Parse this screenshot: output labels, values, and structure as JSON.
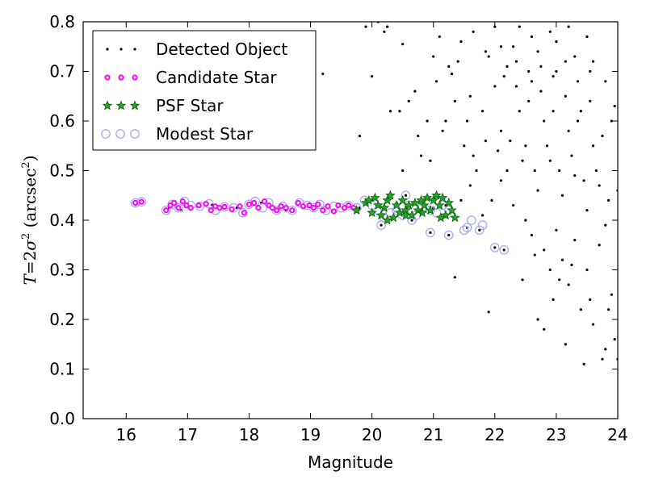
{
  "chart_data": {
    "type": "scatter",
    "xlabel": "Magnitude",
    "ylabel": {
      "math": "T = 2σ²",
      "unit": "arcsec",
      "power": "2",
      "full": "T = 2σ² (arcsec²)"
    },
    "xlim": [
      15.3,
      24
    ],
    "ylim": [
      0,
      0.8
    ],
    "x_ticks": [
      "16",
      "17",
      "18",
      "19",
      "20",
      "21",
      "22",
      "23",
      "24"
    ],
    "y_ticks": [
      "0.0",
      "0.1",
      "0.2",
      "0.3",
      "0.4",
      "0.5",
      "0.6",
      "0.7",
      "0.8"
    ],
    "grid": false,
    "legend_position": "top-left",
    "legend": [
      "Detected Object",
      "Candidate Star",
      "PSF Star",
      "Modest Star"
    ],
    "colors": {
      "detected": "#000000",
      "candidate": "#ff00ff",
      "psf_fill": "#2ca02c",
      "psf_edge": "#006400",
      "modest": "#a9a9f5"
    },
    "series": [
      {
        "name": "Detected Object",
        "marker": "dot",
        "points": [
          [
            16.15,
            0.435
          ],
          [
            16.25,
            0.437
          ],
          [
            16.7,
            0.425
          ],
          [
            16.8,
            0.43
          ],
          [
            16.9,
            0.42
          ],
          [
            17.0,
            0.433
          ],
          [
            17.2,
            0.428
          ],
          [
            17.4,
            0.431
          ],
          [
            17.6,
            0.427
          ],
          [
            17.8,
            0.425
          ],
          [
            18.0,
            0.432
          ],
          [
            18.2,
            0.435
          ],
          [
            18.4,
            0.425
          ],
          [
            18.6,
            0.42
          ],
          [
            18.8,
            0.432
          ],
          [
            19.0,
            0.428
          ],
          [
            19.2,
            0.425
          ],
          [
            19.4,
            0.42
          ],
          [
            19.6,
            0.43
          ],
          [
            19.8,
            0.425
          ],
          [
            20.0,
            0.44
          ],
          [
            20.2,
            0.425
          ],
          [
            20.4,
            0.435
          ],
          [
            20.6,
            0.43
          ],
          [
            20.8,
            0.42
          ],
          [
            21.0,
            0.425
          ],
          [
            21.2,
            0.43
          ],
          [
            20.55,
            0.45
          ],
          [
            20.15,
            0.39
          ],
          [
            20.65,
            0.4
          ],
          [
            20.95,
            0.375
          ],
          [
            21.25,
            0.37
          ],
          [
            21.55,
            0.385
          ],
          [
            21.75,
            0.38
          ],
          [
            22.0,
            0.345
          ],
          [
            22.15,
            0.34
          ],
          [
            21.35,
            0.285
          ],
          [
            19.2,
            0.695
          ],
          [
            19.8,
            0.57
          ],
          [
            20.0,
            0.69
          ],
          [
            20.2,
            0.78
          ],
          [
            20.3,
            0.62
          ],
          [
            20.5,
            0.755
          ],
          [
            20.5,
            0.5
          ],
          [
            20.6,
            0.64
          ],
          [
            20.7,
            0.66
          ],
          [
            20.8,
            0.53
          ],
          [
            20.9,
            0.6
          ],
          [
            21.0,
            0.73
          ],
          [
            21.1,
            0.77
          ],
          [
            21.2,
            0.6
          ],
          [
            21.3,
            0.695
          ],
          [
            21.4,
            0.72
          ],
          [
            21.5,
            0.55
          ],
          [
            21.6,
            0.65
          ],
          [
            21.7,
            0.5
          ],
          [
            21.8,
            0.62
          ],
          [
            21.9,
            0.73
          ],
          [
            22.0,
            0.67
          ],
          [
            22.1,
            0.58
          ],
          [
            22.2,
            0.5
          ],
          [
            22.3,
            0.75
          ],
          [
            22.4,
            0.62
          ],
          [
            22.5,
            0.55
          ],
          [
            22.6,
            0.68
          ],
          [
            22.7,
            0.46
          ],
          [
            22.8,
            0.6
          ],
          [
            22.9,
            0.52
          ],
          [
            23.0,
            0.7
          ],
          [
            23.1,
            0.45
          ],
          [
            23.2,
            0.58
          ],
          [
            23.3,
            0.49
          ],
          [
            23.4,
            0.62
          ],
          [
            23.5,
            0.42
          ],
          [
            23.6,
            0.55
          ],
          [
            23.7,
            0.47
          ],
          [
            23.8,
            0.39
          ],
          [
            23.9,
            0.6
          ],
          [
            24.0,
            0.46
          ],
          [
            21.45,
            0.44
          ],
          [
            21.6,
            0.47
          ],
          [
            21.8,
            0.41
          ],
          [
            21.95,
            0.44
          ],
          [
            22.1,
            0.48
          ],
          [
            22.3,
            0.43
          ],
          [
            22.5,
            0.4
          ],
          [
            22.6,
            0.37
          ],
          [
            22.8,
            0.34
          ],
          [
            22.9,
            0.3
          ],
          [
            23.0,
            0.38
          ],
          [
            23.1,
            0.32
          ],
          [
            23.2,
            0.27
          ],
          [
            23.3,
            0.36
          ],
          [
            23.4,
            0.22
          ],
          [
            23.5,
            0.3
          ],
          [
            23.6,
            0.19
          ],
          [
            23.7,
            0.35
          ],
          [
            23.8,
            0.14
          ],
          [
            23.9,
            0.25
          ],
          [
            24.0,
            0.12
          ],
          [
            23.85,
            0.22
          ],
          [
            22.8,
            0.18
          ],
          [
            22.95,
            0.24
          ],
          [
            23.15,
            0.15
          ],
          [
            23.45,
            0.11
          ],
          [
            23.75,
            0.12
          ],
          [
            21.9,
            0.215
          ],
          [
            22.45,
            0.28
          ],
          [
            22.7,
            0.2
          ],
          [
            23.95,
            0.16
          ],
          [
            23.55,
            0.24
          ],
          [
            23.25,
            0.31
          ],
          [
            23.05,
            0.28
          ],
          [
            22.65,
            0.33
          ],
          [
            22.0,
            0.79
          ],
          [
            22.1,
            0.75
          ],
          [
            22.2,
            0.71
          ],
          [
            22.4,
            0.79
          ],
          [
            22.6,
            0.77
          ],
          [
            22.7,
            0.74
          ],
          [
            22.9,
            0.78
          ],
          [
            23.0,
            0.76
          ],
          [
            23.2,
            0.79
          ],
          [
            23.3,
            0.73
          ],
          [
            23.5,
            0.77
          ],
          [
            23.6,
            0.72
          ],
          [
            23.8,
            0.68
          ],
          [
            23.95,
            0.63
          ],
          [
            22.35,
            0.67
          ],
          [
            22.55,
            0.64
          ],
          [
            22.75,
            0.66
          ],
          [
            22.95,
            0.62
          ],
          [
            23.15,
            0.65
          ],
          [
            23.35,
            0.6
          ],
          [
            23.55,
            0.64
          ],
          [
            23.75,
            0.57
          ],
          [
            22.25,
            0.56
          ],
          [
            22.45,
            0.52
          ],
          [
            22.65,
            0.5
          ],
          [
            22.85,
            0.55
          ],
          [
            23.05,
            0.5
          ],
          [
            23.25,
            0.53
          ],
          [
            23.45,
            0.48
          ],
          [
            23.65,
            0.5
          ],
          [
            23.85,
            0.44
          ],
          [
            22.05,
            0.54
          ],
          [
            21.85,
            0.56
          ],
          [
            21.65,
            0.53
          ],
          [
            21.55,
            0.6
          ],
          [
            21.35,
            0.64
          ],
          [
            21.15,
            0.58
          ],
          [
            20.95,
            0.52
          ],
          [
            20.75,
            0.57
          ],
          [
            20.45,
            0.62
          ],
          [
            20.25,
            0.79
          ],
          [
            19.9,
            0.79
          ],
          [
            20.1,
            0.8
          ],
          [
            21.05,
            0.68
          ],
          [
            21.25,
            0.71
          ],
          [
            21.45,
            0.76
          ],
          [
            21.65,
            0.78
          ],
          [
            21.85,
            0.74
          ],
          [
            22.15,
            0.69
          ],
          [
            22.35,
            0.72
          ],
          [
            22.55,
            0.7
          ],
          [
            22.75,
            0.71
          ],
          [
            22.95,
            0.69
          ],
          [
            23.15,
            0.72
          ],
          [
            23.35,
            0.68
          ],
          [
            23.55,
            0.7
          ]
        ]
      },
      {
        "name": "Candidate Star",
        "marker": "small-circle",
        "points": [
          [
            16.15,
            0.435
          ],
          [
            16.25,
            0.437
          ],
          [
            16.65,
            0.42
          ],
          [
            16.72,
            0.43
          ],
          [
            16.78,
            0.435
          ],
          [
            16.85,
            0.425
          ],
          [
            16.92,
            0.438
          ],
          [
            16.98,
            0.43
          ],
          [
            17.05,
            0.425
          ],
          [
            17.18,
            0.43
          ],
          [
            17.3,
            0.433
          ],
          [
            17.38,
            0.42
          ],
          [
            17.45,
            0.428
          ],
          [
            17.52,
            0.425
          ],
          [
            17.6,
            0.427
          ],
          [
            17.72,
            0.422
          ],
          [
            17.85,
            0.428
          ],
          [
            17.92,
            0.415
          ],
          [
            18.0,
            0.432
          ],
          [
            18.08,
            0.435
          ],
          [
            18.15,
            0.425
          ],
          [
            18.25,
            0.438
          ],
          [
            18.32,
            0.43
          ],
          [
            18.38,
            0.425
          ],
          [
            18.45,
            0.42
          ],
          [
            18.52,
            0.428
          ],
          [
            18.6,
            0.425
          ],
          [
            18.7,
            0.42
          ],
          [
            18.8,
            0.435
          ],
          [
            18.88,
            0.428
          ],
          [
            18.98,
            0.43
          ],
          [
            19.05,
            0.425
          ],
          [
            19.12,
            0.432
          ],
          [
            19.2,
            0.42
          ],
          [
            19.28,
            0.428
          ],
          [
            19.38,
            0.418
          ],
          [
            19.45,
            0.43
          ],
          [
            19.55,
            0.425
          ],
          [
            19.62,
            0.43
          ],
          [
            19.7,
            0.425
          ]
        ]
      },
      {
        "name": "PSF Star",
        "marker": "star",
        "points": [
          [
            19.75,
            0.42
          ],
          [
            19.9,
            0.435
          ],
          [
            19.95,
            0.44
          ],
          [
            20.0,
            0.415
          ],
          [
            20.05,
            0.445
          ],
          [
            20.1,
            0.43
          ],
          [
            20.15,
            0.41
          ],
          [
            20.2,
            0.425
          ],
          [
            20.25,
            0.44
          ],
          [
            20.3,
            0.45
          ],
          [
            20.35,
            0.405
          ],
          [
            20.4,
            0.43
          ],
          [
            20.45,
            0.415
          ],
          [
            20.5,
            0.44
          ],
          [
            20.55,
            0.42
          ],
          [
            20.6,
            0.43
          ],
          [
            20.65,
            0.41
          ],
          [
            20.7,
            0.435
          ],
          [
            20.75,
            0.42
          ],
          [
            20.8,
            0.44
          ],
          [
            20.85,
            0.43
          ],
          [
            20.9,
            0.445
          ],
          [
            20.95,
            0.42
          ],
          [
            21.0,
            0.44
          ],
          [
            21.05,
            0.45
          ],
          [
            21.1,
            0.43
          ],
          [
            21.15,
            0.445
          ],
          [
            21.2,
            0.41
          ],
          [
            21.25,
            0.435
          ],
          [
            21.3,
            0.42
          ],
          [
            21.35,
            0.405
          ],
          [
            20.25,
            0.4
          ],
          [
            20.55,
            0.41
          ],
          [
            20.82,
            0.415
          ],
          [
            21.12,
            0.405
          ]
        ]
      },
      {
        "name": "Modest Star",
        "marker": "open-circle",
        "points": [
          [
            16.15,
            0.435
          ],
          [
            16.25,
            0.437
          ],
          [
            16.65,
            0.42
          ],
          [
            16.75,
            0.432
          ],
          [
            16.85,
            0.425
          ],
          [
            16.95,
            0.438
          ],
          [
            17.05,
            0.43
          ],
          [
            17.2,
            0.428
          ],
          [
            17.35,
            0.433
          ],
          [
            17.45,
            0.42
          ],
          [
            17.6,
            0.427
          ],
          [
            17.75,
            0.425
          ],
          [
            17.9,
            0.415
          ],
          [
            18.0,
            0.432
          ],
          [
            18.1,
            0.438
          ],
          [
            18.22,
            0.425
          ],
          [
            18.32,
            0.435
          ],
          [
            18.45,
            0.42
          ],
          [
            18.55,
            0.428
          ],
          [
            18.7,
            0.42
          ],
          [
            18.82,
            0.435
          ],
          [
            18.95,
            0.43
          ],
          [
            19.05,
            0.425
          ],
          [
            19.15,
            0.432
          ],
          [
            19.25,
            0.42
          ],
          [
            19.38,
            0.428
          ],
          [
            19.5,
            0.425
          ],
          [
            19.62,
            0.43
          ],
          [
            19.75,
            0.425
          ],
          [
            19.88,
            0.44
          ],
          [
            20.0,
            0.43
          ],
          [
            20.1,
            0.42
          ],
          [
            20.2,
            0.405
          ],
          [
            20.3,
            0.415
          ],
          [
            20.4,
            0.42
          ],
          [
            20.5,
            0.41
          ],
          [
            20.6,
            0.43
          ],
          [
            20.72,
            0.41
          ],
          [
            20.82,
            0.425
          ],
          [
            20.95,
            0.42
          ],
          [
            21.05,
            0.415
          ],
          [
            21.15,
            0.43
          ],
          [
            21.25,
            0.42
          ],
          [
            20.55,
            0.45
          ],
          [
            20.15,
            0.39
          ],
          [
            20.65,
            0.4
          ],
          [
            20.95,
            0.375
          ],
          [
            21.25,
            0.37
          ],
          [
            21.55,
            0.385
          ],
          [
            21.62,
            0.4
          ],
          [
            21.75,
            0.38
          ],
          [
            21.8,
            0.39
          ],
          [
            22.0,
            0.345
          ],
          [
            22.15,
            0.34
          ],
          [
            21.5,
            0.38
          ]
        ]
      }
    ]
  }
}
